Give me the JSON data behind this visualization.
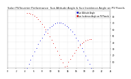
{
  "title": "Solar PV/Inverter Performance  Sun Altitude Angle & Sun Incidence Angle on PV Panels",
  "title_fontsize": 2.8,
  "legend_blue": "Sun Altitude Angle",
  "legend_red": "Sun Incidence Angle on PV Panels",
  "bg_color": "#ffffff",
  "grid_color": "#bbbbbb",
  "blue_color": "#0000dd",
  "red_color": "#dd0000",
  "xmin": 0,
  "xmax": 24,
  "ymin": 0,
  "ymax": 90,
  "ytick_vals": [
    10,
    20,
    30,
    40,
    50,
    60,
    70,
    80
  ],
  "xtick_vals": [
    0,
    2,
    4,
    6,
    8,
    10,
    12,
    14,
    16,
    18,
    20,
    22,
    24
  ],
  "sun_rise": 4.5,
  "sun_set": 19.5,
  "sun_peak_alt": 70,
  "sun_peak_time": 12,
  "incidence_min": 20,
  "incidence_max": 85,
  "incidence_min_time": 12
}
